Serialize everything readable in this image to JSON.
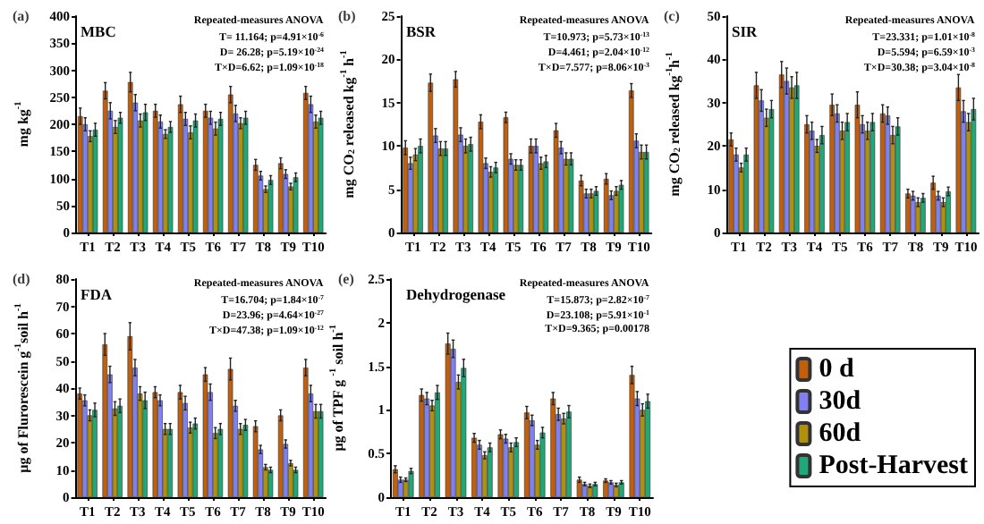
{
  "chart_data": [
    {
      "type": "bar",
      "title": "(a)",
      "ylabel": "mg kg$^{-1}$",
      "categories": [
        "T1",
        "T2",
        "T3",
        "T4",
        "T5",
        "T6",
        "T7",
        "T8",
        "T9",
        "T10"
      ],
      "ylim": [
        0,
        400
      ],
      "yticks": [
        0,
        50,
        100,
        150,
        200,
        250,
        300,
        350,
        400
      ],
      "grid": false,
      "legend": false,
      "annotations": [
        "MBC",
        "Repeated-measures ANOVA",
        "T= 11.164; p=4.91×10$^{-6}$",
        "D= 26.28; p=5.19×10$^{-24}$",
        "T×D=6.62; p=1.09×10$^{-18}$"
      ],
      "series": [
        {
          "color": "#c0600f",
          "values": [
            215,
            262,
            278,
            225,
            237,
            225,
            255,
            125,
            128,
            258
          ],
          "errors": [
            15,
            15,
            18,
            12,
            15,
            12,
            15,
            10,
            10,
            12
          ]
        },
        {
          "color": "#8080f0",
          "values": [
            200,
            225,
            240,
            205,
            210,
            212,
            220,
            105,
            108,
            237
          ],
          "errors": [
            12,
            15,
            15,
            12,
            12,
            12,
            15,
            8,
            8,
            15
          ]
        },
        {
          "color": "#b09010",
          "values": [
            178,
            195,
            207,
            182,
            185,
            192,
            202,
            80,
            85,
            205
          ],
          "errors": [
            10,
            12,
            12,
            8,
            12,
            12,
            10,
            6,
            6,
            12
          ]
        },
        {
          "color": "#20a878",
          "values": [
            190,
            212,
            222,
            195,
            207,
            210,
            212,
            97,
            102,
            212
          ],
          "errors": [
            12,
            10,
            15,
            10,
            12,
            12,
            12,
            8,
            8,
            12
          ]
        }
      ]
    },
    {
      "type": "bar",
      "title": "(b)",
      "ylabel": "mg CO$_{2}$ released kg$^{-1}$ h$^{-1}$",
      "categories": [
        "T1",
        "T2",
        "T3",
        "T4",
        "T5",
        "T6",
        "T7",
        "T8",
        "T9",
        "T10"
      ],
      "ylim": [
        0,
        25
      ],
      "yticks": [
        0,
        5,
        10,
        15,
        20,
        25
      ],
      "grid": false,
      "legend": false,
      "annotations": [
        "BSR",
        "Repeated-measures ANOVA",
        "T=10.973; p=5.73×10$^{-13}$",
        "D=4.461; p=2.04×10$^{-12}$",
        "T×D=7.577; p=8.06×10$^{-3}$"
      ],
      "series": [
        {
          "color": "#c0600f",
          "values": [
            9.8,
            17.3,
            17.7,
            12.8,
            13.3,
            10.0,
            11.8,
            6.0,
            6.2,
            16.4
          ],
          "errors": [
            0.8,
            1.0,
            0.9,
            0.8,
            0.6,
            0.8,
            0.8,
            0.6,
            0.6,
            0.8
          ]
        },
        {
          "color": "#8080f0",
          "values": [
            8.0,
            11.2,
            11.3,
            8.0,
            8.5,
            10.0,
            9.8,
            4.5,
            4.3,
            10.6
          ],
          "errors": [
            0.7,
            0.8,
            0.8,
            0.6,
            0.6,
            0.8,
            0.7,
            0.5,
            0.5,
            0.8
          ]
        },
        {
          "color": "#b09010",
          "values": [
            9.0,
            9.7,
            10.0,
            7.0,
            7.8,
            8.0,
            8.5,
            4.5,
            4.8,
            9.3
          ],
          "errors": [
            0.7,
            0.8,
            0.8,
            0.6,
            0.6,
            0.7,
            0.7,
            0.5,
            0.5,
            0.8
          ]
        },
        {
          "color": "#20a878",
          "values": [
            10.0,
            9.7,
            10.2,
            7.5,
            7.8,
            8.2,
            8.5,
            4.8,
            5.5,
            9.3
          ],
          "errors": [
            0.8,
            0.8,
            0.8,
            0.6,
            0.6,
            0.7,
            0.7,
            0.5,
            0.5,
            0.8
          ]
        }
      ]
    },
    {
      "type": "bar",
      "title": "(c)",
      "ylabel": "mg CO$_{2}$ released kg$^{-1}$h$^{-1}$",
      "categories": [
        "T1",
        "T2",
        "T3",
        "T4",
        "T5",
        "T6",
        "T7",
        "T8",
        "T9",
        "T10"
      ],
      "ylim": [
        0,
        50
      ],
      "yticks": [
        0,
        10,
        20,
        30,
        40,
        50
      ],
      "grid": false,
      "legend": false,
      "annotations": [
        "SIR",
        "Repeated-measures ANOVA",
        "T=23.331; p=1.01×10$^{-8}$",
        "D=5.594; p=6.59×10$^{-3}$",
        "T×D=30.38; p=3.04×10$^{-8}$"
      ],
      "series": [
        {
          "color": "#c0600f",
          "values": [
            21.5,
            34,
            36.5,
            25,
            29.5,
            29.5,
            27.5,
            9,
            11.5,
            33.5
          ],
          "errors": [
            1.5,
            3,
            3,
            2,
            2.5,
            3,
            2,
            1,
            1.5,
            3
          ]
        },
        {
          "color": "#8080f0",
          "values": [
            18,
            30.5,
            35,
            23.5,
            27.5,
            25,
            27,
            8.5,
            8.5,
            28
          ],
          "errors": [
            1.5,
            2.5,
            3,
            2,
            2,
            2,
            2,
            1,
            1,
            2.5
          ]
        },
        {
          "color": "#b09010",
          "values": [
            15,
            26.5,
            33.5,
            20,
            23.5,
            23.5,
            22.5,
            7,
            7,
            25.5
          ],
          "errors": [
            1,
            2,
            2.5,
            1.5,
            2,
            2,
            2,
            1,
            1,
            2
          ]
        },
        {
          "color": "#20a878",
          "values": [
            18,
            28.5,
            34,
            22.5,
            25.5,
            25.5,
            24.5,
            8,
            9.5,
            28.5
          ],
          "errors": [
            1.5,
            2,
            3,
            2,
            2,
            2,
            2,
            1,
            1,
            2.5
          ]
        }
      ]
    },
    {
      "type": "bar",
      "title": "(d)",
      "ylabel": "μg of Flurorescein g$^{-1}$soil h$^{-1}$",
      "categories": [
        "T1",
        "T2",
        "T3",
        "T4",
        "T5",
        "T6",
        "T7",
        "T8",
        "T9",
        "T10"
      ],
      "ylim": [
        0,
        80
      ],
      "yticks": [
        0,
        10,
        20,
        30,
        40,
        50,
        60,
        70,
        80
      ],
      "grid": false,
      "legend": false,
      "annotations": [
        "FDA",
        "Repeated-measures ANOVA",
        "T=16.704; p=1.84×10$^{-7}$",
        "D=23.96; p=4.64×10$^{-27}$",
        "T×D=47.38; p=1.09×10$^{-12}$"
      ],
      "series": [
        {
          "color": "#c0600f",
          "values": [
            38,
            56,
            59,
            38.5,
            38.5,
            45,
            47,
            26,
            30,
            47.5
          ],
          "errors": [
            2,
            4,
            5,
            2,
            2.5,
            2.5,
            4,
            2,
            2,
            3
          ]
        },
        {
          "color": "#8080f0",
          "values": [
            35.5,
            45,
            47.5,
            35.5,
            34.5,
            38.5,
            33.5,
            17.5,
            19.5,
            38
          ],
          "errors": [
            2,
            3,
            3,
            2,
            2.5,
            3,
            2,
            1.5,
            1.5,
            3
          ]
        },
        {
          "color": "#b09010",
          "values": [
            30,
            32.5,
            38,
            25,
            25.5,
            23.5,
            25,
            11,
            12.5,
            31.5
          ],
          "errors": [
            2,
            2.5,
            2.5,
            2,
            2,
            2,
            2,
            1,
            1,
            2.5
          ]
        },
        {
          "color": "#20a878",
          "values": [
            32,
            33.5,
            35.5,
            25,
            27,
            25,
            26.5,
            10,
            10,
            31.5
          ],
          "errors": [
            2.5,
            2.5,
            3,
            2,
            2,
            2,
            2,
            1,
            1,
            2.5
          ]
        }
      ]
    },
    {
      "type": "bar",
      "title": "(e)",
      "ylabel": "μg of TPF g $^{-1}$ soil h$^{-1}$",
      "categories": [
        "T1",
        "T2",
        "T3",
        "T4",
        "T5",
        "T6",
        "T7",
        "T8",
        "T9",
        "T10"
      ],
      "ylim": [
        0,
        2.5
      ],
      "yticks": [
        0.0,
        0.5,
        1.0,
        1.5,
        2.0,
        2.5
      ],
      "grid": false,
      "legend": "right",
      "annotations": [
        "Dehydrogenase",
        "Repeated-measures ANOVA",
        "T=15.873; p=2.82×10$^{-7}$",
        "D=23.108; p=5.91×10$^{-1}$",
        "T×D=9.365; p=0.00178"
      ],
      "series": [
        {
          "name": "0 d",
          "color": "#c0600f",
          "values": [
            0.32,
            1.17,
            1.76,
            0.68,
            0.72,
            0.97,
            1.13,
            0.2,
            0.19,
            1.4
          ],
          "errors": [
            0.04,
            0.07,
            0.12,
            0.05,
            0.05,
            0.07,
            0.07,
            0.03,
            0.02,
            0.1
          ]
        },
        {
          "name": "30d",
          "color": "#8080f0",
          "values": [
            0.2,
            1.13,
            1.7,
            0.6,
            0.67,
            0.88,
            0.95,
            0.15,
            0.17,
            1.13
          ],
          "errors": [
            0.03,
            0.07,
            0.1,
            0.05,
            0.05,
            0.06,
            0.07,
            0.02,
            0.02,
            0.08
          ]
        },
        {
          "name": "60d",
          "color": "#b09010",
          "values": [
            0.2,
            1.05,
            1.32,
            0.48,
            0.57,
            0.6,
            0.9,
            0.13,
            0.14,
            1.0
          ],
          "errors": [
            0.02,
            0.06,
            0.08,
            0.04,
            0.05,
            0.05,
            0.06,
            0.02,
            0.02,
            0.07
          ]
        },
        {
          "name": "Post-Harvest",
          "color": "#20a878",
          "values": [
            0.3,
            1.2,
            1.48,
            0.57,
            0.63,
            0.74,
            0.98,
            0.15,
            0.17,
            1.1
          ],
          "errors": [
            0.03,
            0.08,
            0.1,
            0.05,
            0.05,
            0.06,
            0.07,
            0.02,
            0.02,
            0.08
          ]
        }
      ]
    }
  ]
}
